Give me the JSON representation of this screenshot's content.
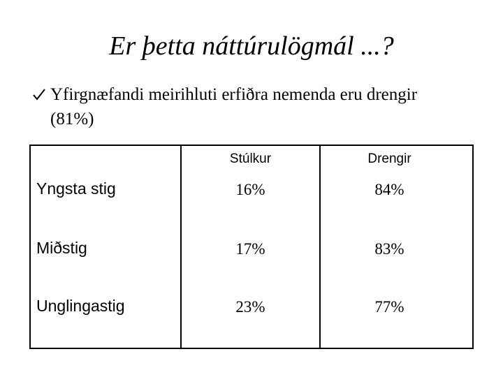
{
  "title": "Er þetta náttúrulögmál ...?",
  "bullet": "Yfirgnæfandi meirihluti erfiðra nemenda eru drengir (81%)",
  "table": {
    "columns": [
      "Stúlkur",
      "Drengir"
    ],
    "rows": [
      {
        "label": "Yngsta stig",
        "values": [
          "16%",
          "84%"
        ]
      },
      {
        "label": "Miðstig",
        "values": [
          "17%",
          "83%"
        ]
      },
      {
        "label": "Unglingastig",
        "values": [
          "23%",
          "77%"
        ]
      }
    ]
  }
}
